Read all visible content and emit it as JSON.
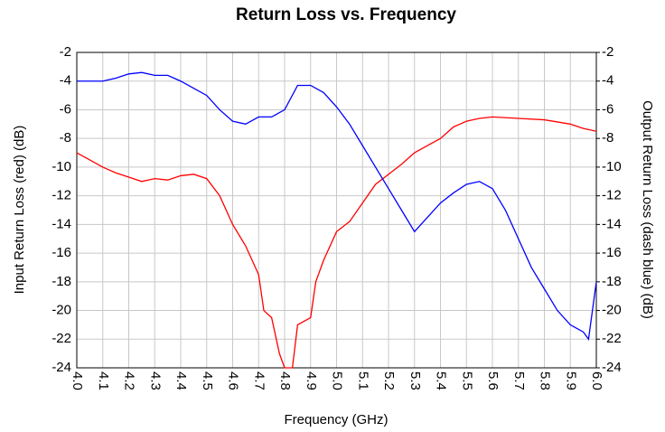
{
  "chart_data": {
    "type": "line",
    "title": "Return Loss vs. Frequency",
    "xlabel": "Frequency (GHz)",
    "ylabel": "Input Return Loss (red) (dB)",
    "y2label": "Output Return Loss (dash blue) (dB)",
    "xlim": [
      4.0,
      6.0
    ],
    "xticks": [
      {
        "value": 4,
        "label": "4.0"
      },
      4.1,
      4.2,
      4.3,
      4.4,
      4.5,
      4.6,
      4.7,
      4.8,
      4.9,
      {
        "value": 5,
        "label": "5.0"
      },
      5.1,
      5.2,
      5.3,
      5.4,
      5.5,
      5.6,
      5.7,
      5.8,
      5.9,
      {
        "value": 6,
        "label": "6.0"
      }
    ],
    "ylim": [
      -24,
      -2
    ],
    "yticks": [
      -2,
      -4,
      -6,
      -8,
      -10,
      -12,
      -14,
      -16,
      -18,
      -20,
      -22,
      -24
    ],
    "y2lim": [
      -24,
      -2
    ],
    "y2ticks": [
      -2,
      -4,
      -6,
      -8,
      -10,
      -12,
      -14,
      -16,
      -18,
      -20,
      -22,
      -24
    ],
    "grid": true,
    "series": [
      {
        "color": "#ff0000",
        "x": [
          4.0,
          4.05,
          4.1,
          4.15,
          4.2,
          4.25,
          4.3,
          4.35,
          4.4,
          4.45,
          4.5,
          4.55,
          4.6,
          4.65,
          4.7,
          4.72,
          4.75,
          4.78,
          4.8,
          4.83,
          4.85,
          4.9,
          4.92,
          4.95,
          5.0,
          5.05,
          5.1,
          5.15,
          5.2,
          5.25,
          5.3,
          5.35,
          5.4,
          5.45,
          5.5,
          5.55,
          5.6,
          5.7,
          5.8,
          5.9,
          5.95,
          6.0
        ],
        "values": [
          -9,
          -9.5,
          -10,
          -10.4,
          -10.7,
          -11,
          -10.8,
          -10.9,
          -10.6,
          -10.5,
          -10.8,
          -12,
          -14,
          -15.5,
          -17.5,
          -20,
          -20.5,
          -23,
          -24,
          -24,
          -21,
          -20.5,
          -18,
          -16.5,
          -14.5,
          -13.8,
          -12.5,
          -11.2,
          -10.5,
          -9.8,
          -9,
          -8.5,
          -8,
          -7.2,
          -6.8,
          -6.6,
          -6.5,
          -6.6,
          -6.7,
          -7,
          -7.3,
          -7.5
        ]
      },
      {
        "color": "#0000ff",
        "axis": "y2",
        "x": [
          4.0,
          4.05,
          4.1,
          4.15,
          4.2,
          4.25,
          4.3,
          4.35,
          4.4,
          4.45,
          4.5,
          4.55,
          4.6,
          4.65,
          4.7,
          4.75,
          4.8,
          4.85,
          4.9,
          4.95,
          5.0,
          5.05,
          5.1,
          5.15,
          5.2,
          5.25,
          5.3,
          5.35,
          5.4,
          5.45,
          5.5,
          5.55,
          5.6,
          5.65,
          5.7,
          5.75,
          5.8,
          5.85,
          5.9,
          5.95,
          5.97,
          6.0
        ],
        "values": [
          -4,
          -4,
          -4,
          -3.8,
          -3.5,
          -3.4,
          -3.6,
          -3.6,
          -4,
          -4.5,
          -5,
          -6,
          -6.8,
          -7,
          -6.5,
          -6.5,
          -6,
          -4.3,
          -4.3,
          -4.8,
          -5.8,
          -7,
          -8.5,
          -10,
          -11.5,
          -13,
          -14.5,
          -13.5,
          -12.5,
          -11.8,
          -11.2,
          -11,
          -11.5,
          -13,
          -15,
          -17,
          -18.5,
          -20,
          -21,
          -21.5,
          -22,
          -18
        ]
      }
    ]
  }
}
